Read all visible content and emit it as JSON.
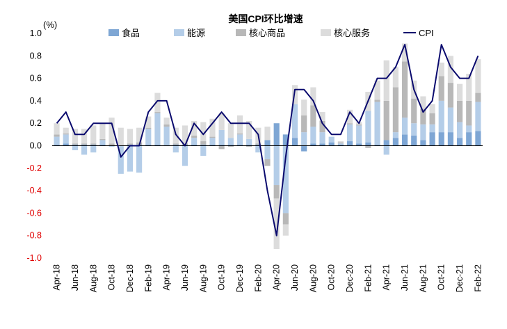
{
  "chart_data": {
    "type": "bar",
    "title": "美国CPI环比增速",
    "unit_label": "(%)",
    "ylim": [
      -1.0,
      1.0
    ],
    "yticks": [
      "1.0",
      "0.8",
      "0.6",
      "0.4",
      "0.2",
      "0.0",
      "-0.2",
      "-0.4",
      "-0.6",
      "-0.8",
      "-1.0"
    ],
    "ytick_values": [
      1.0,
      0.8,
      0.6,
      0.4,
      0.2,
      0.0,
      -0.2,
      -0.4,
      -0.6,
      -0.8,
      -1.0
    ],
    "legend_position": "top",
    "categories": [
      "Apr-18",
      "May-18",
      "Jun-18",
      "Jul-18",
      "Aug-18",
      "Sep-18",
      "Oct-18",
      "Nov-18",
      "Dec-18",
      "Jan-19",
      "Feb-19",
      "Mar-19",
      "Apr-19",
      "May-19",
      "Jun-19",
      "Jul-19",
      "Aug-19",
      "Sep-19",
      "Oct-19",
      "Nov-19",
      "Dec-19",
      "Jan-20",
      "Feb-20",
      "Mar-20",
      "Apr-20",
      "May-20",
      "Jun-20",
      "Jul-20",
      "Aug-20",
      "Sep-20",
      "Oct-20",
      "Nov-20",
      "Dec-20",
      "Jan-21",
      "Feb-21",
      "Mar-21",
      "Apr-21",
      "May-21",
      "Jun-21",
      "Jul-21",
      "Aug-21",
      "Sep-21",
      "Oct-21",
      "Nov-21",
      "Dec-21",
      "Jan-22",
      "Feb-22"
    ],
    "x_tick_labels": [
      "Apr-18",
      "Jun-18",
      "Aug-18",
      "Oct-18",
      "Dec-18",
      "Feb-19",
      "Apr-19",
      "Jun-19",
      "Aug-19",
      "Oct-19",
      "Dec-19",
      "Feb-20",
      "Apr-20",
      "Jun-20",
      "Aug-20",
      "Oct-20",
      "Dec-20",
      "Feb-21",
      "Apr-21",
      "Jun-21",
      "Aug-21",
      "Oct-21",
      "Dec-21",
      "Feb-22"
    ],
    "series": [
      {
        "name": "食品",
        "kind": "bar",
        "color": "#7ea6d4",
        "values": [
          0.01,
          0.02,
          0.01,
          0.01,
          0.01,
          0.01,
          0.0,
          0.0,
          0.01,
          0.01,
          0.01,
          0.01,
          0.0,
          0.01,
          0.01,
          0.01,
          0.01,
          0.01,
          0.01,
          0.01,
          0.01,
          0.01,
          0.01,
          0.05,
          0.2,
          0.1,
          0.07,
          -0.05,
          0.02,
          0.02,
          0.03,
          0.01,
          0.04,
          0.02,
          0.03,
          0.01,
          0.05,
          0.07,
          0.1,
          0.09,
          0.05,
          0.12,
          0.12,
          0.12,
          0.07,
          0.12,
          0.13
        ]
      },
      {
        "name": "能源",
        "kind": "bar",
        "color": "#b4cde8",
        "values": [
          0.07,
          0.08,
          -0.04,
          -0.08,
          -0.06,
          0.04,
          -0.01,
          -0.25,
          -0.23,
          -0.24,
          0.14,
          0.28,
          0.17,
          -0.06,
          -0.18,
          0.06,
          -0.09,
          0.06,
          0.13,
          0.06,
          0.09,
          0.05,
          -0.06,
          -0.12,
          -0.35,
          -0.6,
          0.3,
          0.12,
          0.15,
          0.1,
          0.05,
          0.01,
          0.15,
          0.16,
          0.28,
          0.38,
          -0.08,
          0.05,
          0.15,
          0.11,
          0.14,
          0.07,
          0.28,
          0.22,
          0.14,
          0.06,
          0.26
        ]
      },
      {
        "name": "核心商品",
        "kind": "bar",
        "color": "#b8b8b8",
        "values": [
          0.02,
          0.01,
          0.01,
          0.01,
          0.01,
          0.01,
          0.02,
          0.0,
          0.01,
          0.02,
          0.01,
          0.01,
          0.02,
          0.01,
          0.01,
          0.02,
          0.03,
          0.01,
          -0.03,
          -0.01,
          0.01,
          -0.01,
          0.01,
          -0.06,
          -0.12,
          -0.1,
          0.0,
          0.15,
          0.19,
          0.1,
          0.0,
          0.01,
          0.01,
          0.01,
          -0.02,
          0.02,
          0.35,
          0.4,
          0.5,
          0.22,
          0.14,
          0.1,
          0.22,
          0.22,
          0.19,
          0.22,
          0.08
        ]
      },
      {
        "name": "核心服务",
        "kind": "bar",
        "color": "#dcdcdc",
        "values": [
          0.1,
          0.05,
          0.13,
          0.13,
          0.16,
          0.14,
          0.23,
          0.16,
          0.13,
          0.13,
          0.1,
          0.17,
          0.06,
          0.14,
          0.16,
          0.13,
          0.17,
          0.16,
          0.15,
          0.13,
          0.16,
          0.16,
          0.14,
          0.12,
          -0.45,
          -0.1,
          0.17,
          0.14,
          0.16,
          0.08,
          0.0,
          0.01,
          0.12,
          0.02,
          0.17,
          0.17,
          0.36,
          0.18,
          0.16,
          0.16,
          0.11,
          0.08,
          0.12,
          0.24,
          0.15,
          0.24,
          0.3
        ]
      },
      {
        "name": "CPI",
        "kind": "line",
        "color": "#0a0a6e",
        "values": [
          0.2,
          0.3,
          0.1,
          0.1,
          0.2,
          0.2,
          0.2,
          -0.1,
          0.0,
          0.0,
          0.3,
          0.4,
          0.4,
          0.1,
          0.0,
          0.2,
          0.1,
          0.2,
          0.3,
          0.2,
          0.2,
          0.2,
          0.1,
          -0.4,
          -0.8,
          -0.1,
          0.5,
          0.5,
          0.4,
          0.2,
          0.1,
          0.1,
          0.3,
          0.2,
          0.4,
          0.6,
          0.6,
          0.7,
          0.9,
          0.5,
          0.3,
          0.4,
          0.9,
          0.7,
          0.6,
          0.6,
          0.8
        ]
      }
    ]
  }
}
